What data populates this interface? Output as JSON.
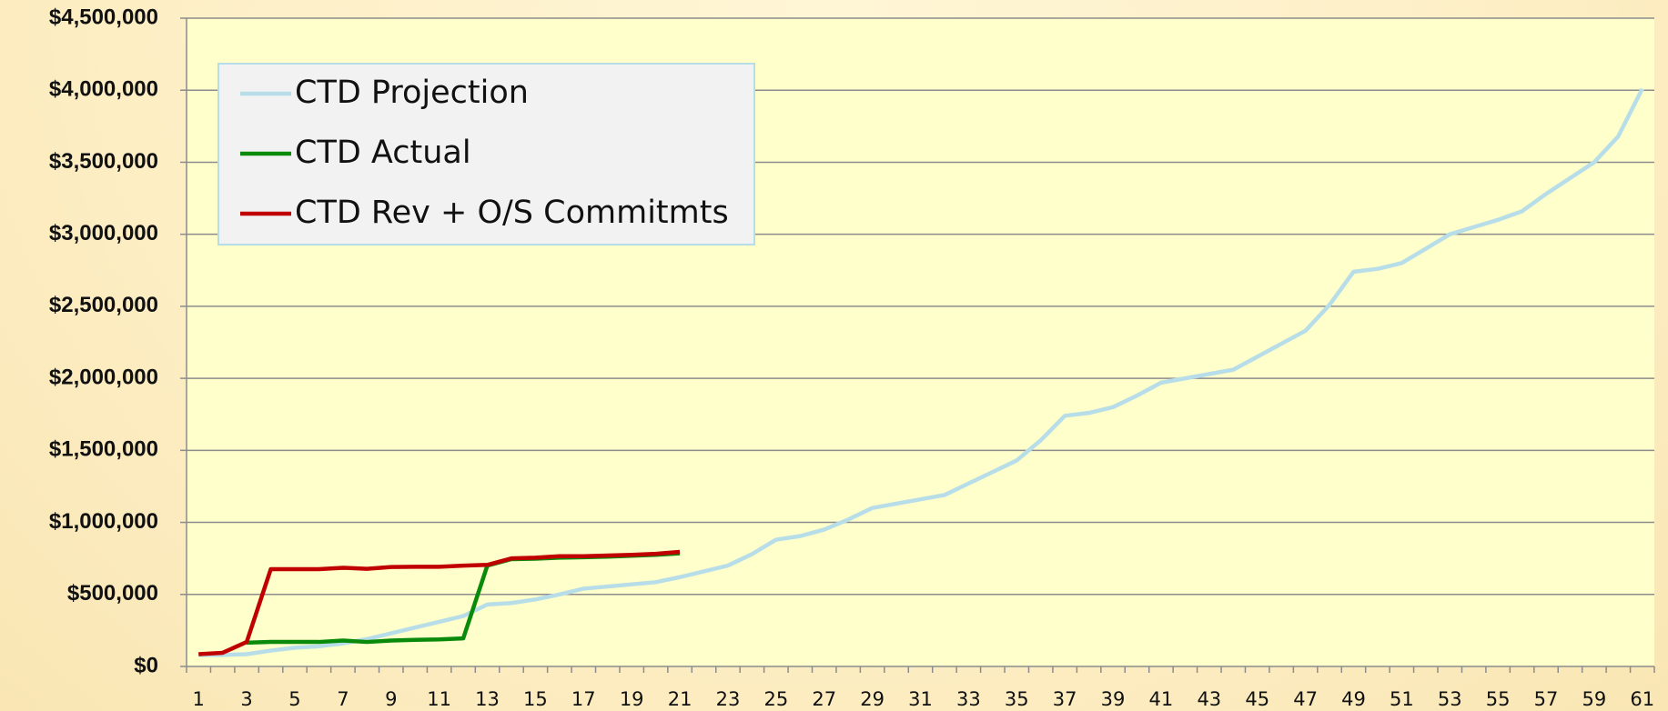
{
  "chart_data": {
    "type": "line",
    "categories": [
      "1",
      null,
      "3",
      null,
      "5",
      null,
      "7",
      null,
      "9",
      null,
      "11",
      null,
      "13",
      null,
      "15",
      null,
      "17",
      null,
      "19",
      null,
      "21",
      null,
      "23",
      null,
      "25",
      null,
      "27",
      null,
      "29",
      null,
      "31",
      null,
      "33",
      null,
      "35",
      null,
      "37",
      null,
      "39",
      null,
      "41",
      null,
      "43",
      null,
      "45",
      null,
      "47",
      null,
      "49",
      null,
      "51",
      null,
      "53",
      null,
      "55",
      null,
      "57",
      null,
      "59",
      null,
      "61"
    ],
    "series": [
      {
        "name": "CTD Projection",
        "color": "#b7dde8",
        "values": [
          80000,
          80000,
          85000,
          110000,
          130000,
          140000,
          160000,
          190000,
          230000,
          270000,
          310000,
          350000,
          430000,
          440000,
          465000,
          500000,
          540000,
          555000,
          570000,
          585000,
          620000,
          660000,
          700000,
          780000,
          880000,
          905000,
          950000,
          1020000,
          1100000,
          1130000,
          1160000,
          1190000,
          1270000,
          1350000,
          1430000,
          1570000,
          1740000,
          1760000,
          1800000,
          1880000,
          1970000,
          2000000,
          2030000,
          2060000,
          2150000,
          2240000,
          2330000,
          2510000,
          2740000,
          2760000,
          2800000,
          2900000,
          3000000,
          3050000,
          3100000,
          3160000,
          3280000,
          3390000,
          3500000,
          3680000,
          4010000
        ]
      },
      {
        "name": "CTD Actual",
        "color": "#0a8a0a",
        "values": [
          null,
          null,
          165000,
          170000,
          170000,
          170000,
          180000,
          170000,
          180000,
          185000,
          188000,
          195000,
          700000,
          745000,
          748000,
          755000,
          758000,
          762000,
          768000,
          775000,
          785000,
          null,
          null,
          null,
          null,
          null,
          null,
          null,
          null,
          null,
          null,
          null,
          null,
          null,
          null,
          null,
          null,
          null,
          null,
          null,
          null,
          null,
          null,
          null,
          null,
          null,
          null,
          null,
          null,
          null,
          null,
          null,
          null,
          null,
          null,
          null,
          null,
          null,
          null,
          null,
          null
        ]
      },
      {
        "name": "CTD Rev + O/S Commitmts",
        "color": "#c00000",
        "values": [
          85000,
          95000,
          170000,
          675000,
          675000,
          675000,
          685000,
          678000,
          690000,
          692000,
          692000,
          700000,
          705000,
          750000,
          755000,
          765000,
          765000,
          770000,
          775000,
          782000,
          795000,
          null,
          null,
          null,
          null,
          null,
          null,
          null,
          null,
          null,
          null,
          null,
          null,
          null,
          null,
          null,
          null,
          null,
          null,
          null,
          null,
          null,
          null,
          null,
          null,
          null,
          null,
          null,
          null,
          null,
          null,
          null,
          null,
          null,
          null,
          null,
          null,
          null,
          null,
          null,
          null
        ]
      }
    ],
    "ylim": [
      0,
      4500000
    ],
    "yticks": [
      {
        "value": 0,
        "label": "$0"
      },
      {
        "value": 500000,
        "label": "$500,000"
      },
      {
        "value": 1000000,
        "label": "$1,000,000"
      },
      {
        "value": 1500000,
        "label": "$1,500,000"
      },
      {
        "value": 2000000,
        "label": "$2,000,000"
      },
      {
        "value": 2500000,
        "label": "$2,500,000"
      },
      {
        "value": 3000000,
        "label": "$3,000,000"
      },
      {
        "value": 3500000,
        "label": "$3,500,000"
      },
      {
        "value": 4000000,
        "label": "$4,000,000"
      },
      {
        "value": 4500000,
        "label": "$4,500,000"
      }
    ],
    "grid": true,
    "legend": "top-left"
  }
}
